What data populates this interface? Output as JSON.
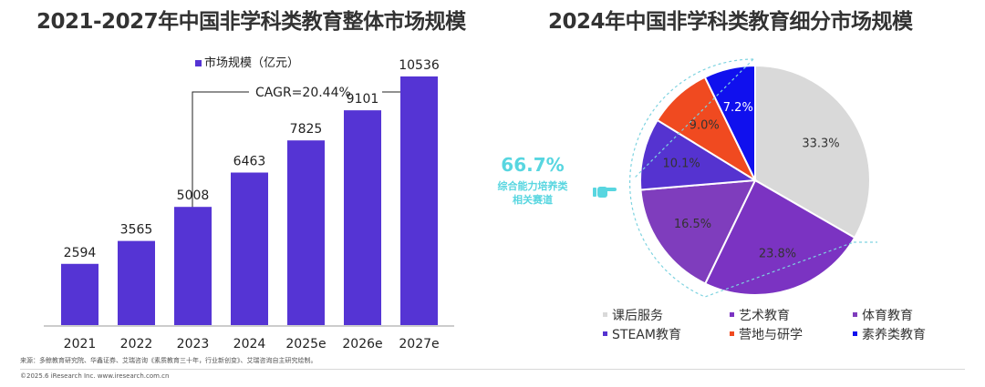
{
  "left": {
    "title": "2021-2027年中国非学科类教育整体市场规模",
    "cagr_label": "CAGR=20.44%"
  },
  "right": {
    "title": "2024年中国非学科类教育细分市场规模",
    "callout_value": "66.7%",
    "callout_line1": "综合能力培养类",
    "callout_line2": "相关赛道"
  },
  "footnote": "来源：多鲸教育研究院、华鑫证券、艾瑞咨询《素质教育三十年，行业新创变》、艾瑞咨询自主研究绘制。",
  "copyright": "©2025.6 iResearch Inc. www.iresearch.com.cn",
  "colors": {
    "bar": "#5534d4",
    "dash": "#7ed3e0",
    "callout": "#58d6e0"
  },
  "chart_data": [
    {
      "type": "bar",
      "title": "2021-2027年中国非学科类教育整体市场规模",
      "categories": [
        "2021",
        "2022",
        "2023",
        "2024",
        "2025e",
        "2026e",
        "2027e"
      ],
      "series": [
        {
          "name": "市场规模（亿元）",
          "values": [
            2594,
            3565,
            5008,
            6463,
            7825,
            9101,
            10536
          ],
          "color": "#5534d4"
        }
      ],
      "ylim": [
        0,
        12000
      ],
      "legend": "top-left",
      "grid": false,
      "annotations": [
        "CAGR=20.44%"
      ]
    },
    {
      "type": "pie",
      "title": "2024年中国非学科类教育细分市场规模",
      "slices": [
        {
          "label": "课后服务",
          "value": 33.3,
          "text": "33.3%",
          "color": "#d9d9d9",
          "text_color": "#333333"
        },
        {
          "label": "艺术教育",
          "value": 23.8,
          "text": "23.8%",
          "color": "#7b33c2",
          "text_color": "#333333"
        },
        {
          "label": "体育教育",
          "value": 16.5,
          "text": "16.5%",
          "color": "#7f3dbd",
          "text_color": "#333333"
        },
        {
          "label": "STEAM教育",
          "value": 10.1,
          "text": "10.1%",
          "color": "#5533d0",
          "text_color": "#333333"
        },
        {
          "label": "营地与研学",
          "value": 9.0,
          "text": "9.0%",
          "color": "#f04a20",
          "text_color": "#333333"
        },
        {
          "label": "素养类教育",
          "value": 7.2,
          "text": "7.2%",
          "color": "#1010ee",
          "text_color": "#ffffff"
        }
      ],
      "legend": "bottom",
      "annotations": [
        "66.7%",
        "综合能力培养类",
        "相关赛道"
      ]
    }
  ]
}
